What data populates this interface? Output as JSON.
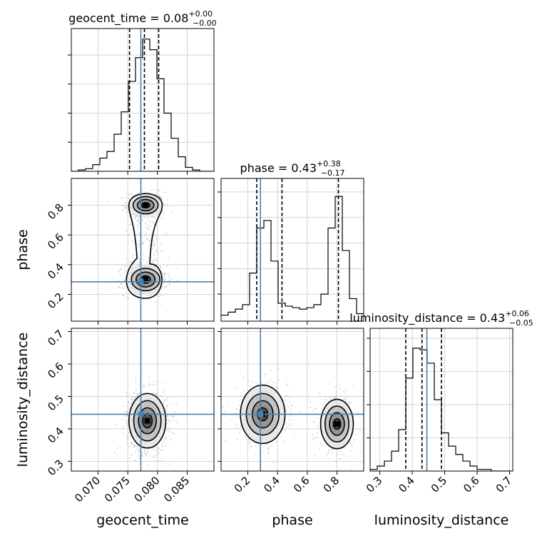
{
  "chart_data": {
    "type": "corner",
    "parameters": [
      "geocent_time",
      "phase",
      "luminosity_distance"
    ],
    "truths": {
      "geocent_time": 0.0772,
      "phase": 0.285,
      "luminosity_distance": 0.445
    },
    "axes": {
      "geocent_time": {
        "range": [
          0.0655,
          0.0895
        ],
        "ticks": [
          0.07,
          0.075,
          0.08,
          0.085
        ],
        "tick_labels": [
          "0.070",
          "0.075",
          "0.080",
          "0.085"
        ]
      },
      "phase": {
        "range": [
          0.02,
          0.98
        ],
        "ticks": [
          0.2,
          0.4,
          0.6,
          0.8
        ],
        "tick_labels": [
          "0.2",
          "0.4",
          "0.6",
          "0.8"
        ]
      },
      "luminosity_distance": {
        "range": [
          0.27,
          0.71
        ],
        "ticks": [
          0.3,
          0.4,
          0.5,
          0.6,
          0.7
        ],
        "tick_labels": [
          "0.3",
          "0.4",
          "0.5",
          "0.6",
          "0.7"
        ]
      }
    },
    "titles": [
      {
        "param": "geocent_time",
        "label": "geocent_time = 0.08",
        "plus": "+0.00",
        "minus": "−0.00"
      },
      {
        "param": "phase",
        "label": "phase = 0.43",
        "plus": "+0.38",
        "minus": "−0.17"
      },
      {
        "param": "luminosity_distance",
        "label": "luminosity_distance = 0.43",
        "plus": "+0.06",
        "minus": "−0.05"
      }
    ],
    "quantiles": {
      "geocent_time": [
        0.0753,
        0.0778,
        0.0802
      ],
      "phase": [
        0.26,
        0.43,
        0.81
      ],
      "luminosity_distance": [
        0.38,
        0.43,
        0.49
      ]
    },
    "histograms": {
      "geocent_time": {
        "edges": [
          0.0655,
          0.0667,
          0.0679,
          0.0691,
          0.0703,
          0.0715,
          0.0727,
          0.0739,
          0.0751,
          0.0763,
          0.0775,
          0.0787,
          0.0799,
          0.0811,
          0.0823,
          0.0835,
          0.0847,
          0.0859,
          0.0871,
          0.0883,
          0.0895
        ],
        "heights": [
          0,
          1,
          2,
          5,
          10,
          15,
          28,
          45,
          68,
          86,
          100,
          92,
          70,
          44,
          25,
          11,
          3,
          1,
          0,
          0
        ],
        "ymax": 108,
        "yticks": [
          22,
          44,
          66,
          88
        ]
      },
      "phase": {
        "edges": [
          0.02,
          0.068,
          0.116,
          0.164,
          0.212,
          0.26,
          0.308,
          0.356,
          0.404,
          0.452,
          0.5,
          0.548,
          0.596,
          0.644,
          0.692,
          0.74,
          0.788,
          0.836,
          0.884,
          0.932,
          0.98
        ],
        "heights": [
          4,
          6,
          8,
          11,
          32,
          62,
          67,
          40,
          12,
          10,
          9,
          8,
          9,
          11,
          18,
          62,
          83,
          47,
          15,
          5
        ],
        "ymax": 95,
        "yticks": [
          18,
          35,
          52,
          69,
          86
        ]
      },
      "luminosity_distance": {
        "edges": [
          0.27,
          0.292,
          0.314,
          0.336,
          0.358,
          0.38,
          0.402,
          0.424,
          0.446,
          0.468,
          0.49,
          0.512,
          0.534,
          0.556,
          0.578,
          0.6,
          0.622,
          0.644,
          0.666,
          0.688,
          0.71
        ],
        "heights": [
          1,
          3,
          6,
          12,
          25,
          56,
          74,
          73,
          65,
          43,
          23,
          15,
          10,
          6,
          3,
          1,
          1,
          0,
          0,
          0
        ],
        "ymax": 86,
        "yticks": [
          20,
          40,
          60,
          80
        ]
      }
    },
    "contour_panels": [
      {
        "x": "geocent_time",
        "y": "phase",
        "modes": [
          {
            "cx": 0.078,
            "cy": 0.8,
            "levels": [
              [
                0.0007,
                0.018
              ],
              [
                0.0014,
                0.038
              ],
              [
                0.0021,
                0.058
              ],
              [
                0.0028,
                0.08
              ]
            ]
          },
          {
            "cx": 0.078,
            "cy": 0.3,
            "levels": [
              [
                0.0008,
                0.025
              ],
              [
                0.0016,
                0.05
              ],
              [
                0.0024,
                0.075
              ],
              [
                0.0032,
                0.105
              ]
            ]
          }
        ],
        "bridge": true
      },
      {
        "x": "geocent_time",
        "y": "luminosity_distance",
        "modes": [
          {
            "cx": 0.0783,
            "cy": 0.425,
            "levels": [
              [
                0.0008,
                0.022
              ],
              [
                0.0015,
                0.04
              ],
              [
                0.0023,
                0.062
              ],
              [
                0.0031,
                0.084
              ]
            ]
          }
        ],
        "bridge": false
      },
      {
        "x": "phase",
        "y": "luminosity_distance",
        "modes": [
          {
            "cx": 0.3,
            "cy": 0.445,
            "levels": [
              [
                0.035,
                0.02
              ],
              [
                0.07,
                0.042
              ],
              [
                0.11,
                0.064
              ],
              [
                0.15,
                0.09
              ]
            ]
          },
          {
            "cx": 0.8,
            "cy": 0.415,
            "levels": [
              [
                0.025,
                0.016
              ],
              [
                0.05,
                0.035
              ],
              [
                0.08,
                0.055
              ],
              [
                0.11,
                0.076
              ]
            ]
          }
        ],
        "bridge": false
      }
    ],
    "axis_labels": {
      "x": [
        "geocent_time",
        "phase",
        "luminosity_distance"
      ],
      "y": [
        "phase",
        "luminosity_distance"
      ]
    },
    "colors": {
      "truth": "#4682b4",
      "lines": "#000000",
      "grid": "#c8c8c8",
      "scatter": "#9a9a9a"
    },
    "grid": true
  }
}
